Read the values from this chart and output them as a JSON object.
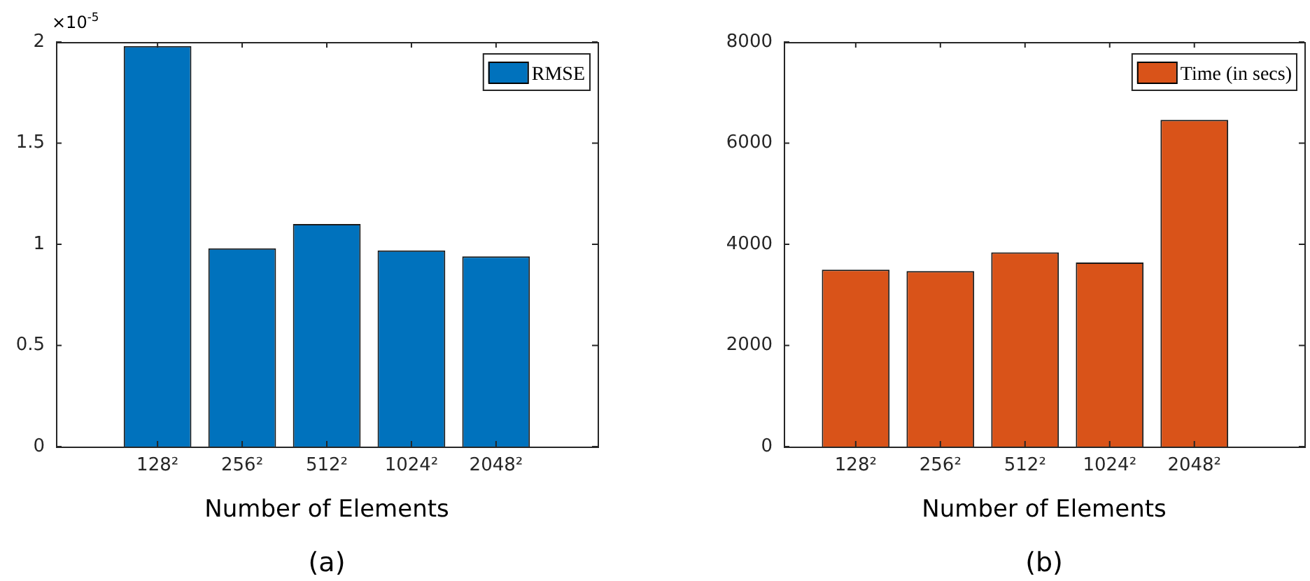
{
  "chart_data": [
    {
      "type": "bar",
      "ylabel": "×10$^{-5}$",
      "xlabel": "Number of Elements",
      "categories": [
        "128²",
        "256²",
        "512²",
        "1024²",
        "2048²"
      ],
      "series": [
        {
          "name": "RMSE",
          "color": "#0072bd",
          "values": [
            1.98,
            0.98,
            1.1,
            0.97,
            0.94
          ]
        }
      ],
      "ylim": [
        0,
        2
      ],
      "yticks": [
        0,
        0.5,
        1,
        1.5,
        2
      ],
      "grid": false,
      "legend": "top right",
      "annotations": [
        "(a)"
      ]
    },
    {
      "type": "bar",
      "xlabel": "Number of Elements",
      "categories": [
        "128²",
        "256²",
        "512²",
        "1024²",
        "2048²"
      ],
      "series": [
        {
          "name": "Time (in secs)",
          "color": "#d95319",
          "values": [
            3500,
            3470,
            3840,
            3640,
            6460
          ]
        }
      ],
      "ylim": [
        0,
        8000
      ],
      "yticks": [
        0,
        2000,
        4000,
        6000,
        8000
      ],
      "grid": false,
      "legend": "top right",
      "annotations": [
        "(b)"
      ]
    }
  ]
}
